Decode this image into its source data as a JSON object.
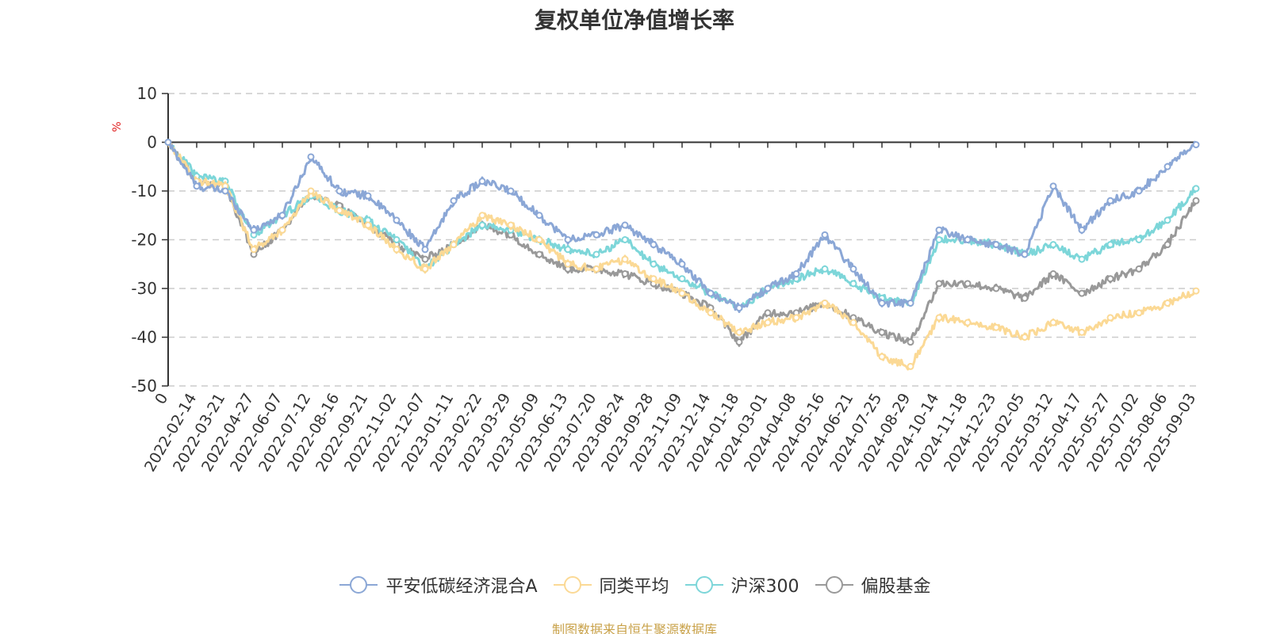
{
  "title": "复权单位净值增长率",
  "source_note": "制图数据来自恒生聚源数据库",
  "chart_data": {
    "type": "line",
    "title": "复权单位净值增长率",
    "ylabel": "%",
    "ylim": [
      -50,
      10
    ],
    "yticks": [
      "10",
      "0",
      "-10",
      "-20",
      "-30",
      "-40",
      "-50"
    ],
    "ytick_values": [
      10,
      0,
      -10,
      -20,
      -30,
      -40,
      -50
    ],
    "grid": true,
    "legend_position": "bottom-center",
    "x_labels": [
      "0",
      "2022-02-14",
      "2022-03-21",
      "2022-04-27",
      "2022-06-07",
      "2022-07-12",
      "2022-08-16",
      "2022-09-21",
      "2022-11-02",
      "2022-12-07",
      "2023-01-11",
      "2023-02-22",
      "2023-03-29",
      "2023-05-09",
      "2023-06-13",
      "2023-07-20",
      "2023-08-24",
      "2023-09-28",
      "2023-11-09",
      "2023-12-14",
      "2024-01-18",
      "2024-03-01",
      "2024-04-08",
      "2024-05-16",
      "2024-06-21",
      "2024-07-25",
      "2024-08-29",
      "2024-10-14",
      "2024-11-18",
      "2024-12-23",
      "2025-02-05",
      "2025-03-12",
      "2025-04-17",
      "2025-05-27",
      "2025-07-02",
      "2025-08-06",
      "2025-09-03"
    ],
    "series": [
      {
        "name": "平安低碳经济混合A",
        "color": "#8ba7d6",
        "values": [
          0,
          -9,
          -10,
          -18,
          -15,
          -3,
          -10,
          -11,
          -16,
          -22,
          -12,
          -8,
          -10,
          -15,
          -20,
          -19,
          -17,
          -21,
          -25,
          -31,
          -34,
          -30,
          -27,
          -19,
          -26,
          -33,
          -33,
          -18,
          -20,
          -21,
          -23,
          -9,
          -18,
          -12,
          -10,
          -5,
          -0.5
        ]
      },
      {
        "name": "同类平均",
        "color": "#fbd995",
        "values": [
          0,
          -8,
          -9,
          -22,
          -18,
          -10,
          -14,
          -17,
          -22,
          -26,
          -21,
          -15,
          -17,
          -20,
          -25,
          -26,
          -24,
          -28,
          -31,
          -35,
          -39,
          -37,
          -36,
          -33,
          -37,
          -44,
          -46,
          -36,
          -37,
          -38,
          -40,
          -37,
          -39,
          -36,
          -35,
          -33,
          -30.5
        ]
      },
      {
        "name": "沪深300",
        "color": "#7dd6d9",
        "values": [
          0,
          -7,
          -8,
          -19,
          -15,
          -11,
          -14,
          -16,
          -20,
          -26,
          -21,
          -17,
          -18,
          -20,
          -22,
          -23,
          -20,
          -25,
          -28,
          -31,
          -34,
          -30,
          -28,
          -26,
          -29,
          -32,
          -33,
          -20,
          -20,
          -21,
          -23,
          -21,
          -24,
          -21,
          -20,
          -16,
          -9.5
        ]
      },
      {
        "name": "偏股基金",
        "color": "#999999",
        "values": [
          0,
          -8,
          -9,
          -23,
          -18,
          -11,
          -13,
          -17,
          -21,
          -24,
          -21,
          -17,
          -19,
          -23,
          -26,
          -26,
          -27,
          -29,
          -31,
          -34,
          -41,
          -35,
          -35,
          -33,
          -36,
          -39,
          -41,
          -29,
          -29,
          -30,
          -32,
          -27,
          -31,
          -28,
          -26,
          -21,
          -12
        ]
      }
    ]
  }
}
